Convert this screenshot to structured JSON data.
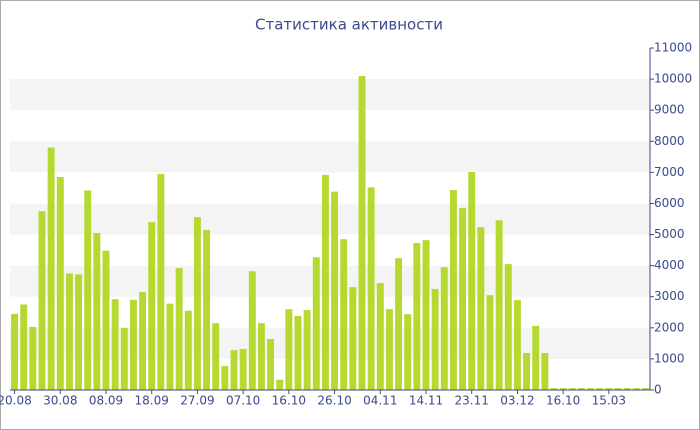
{
  "chart_data": {
    "type": "bar",
    "title": "Статистика активности",
    "categories": [
      "20.08",
      null,
      null,
      null,
      null,
      "30.08",
      null,
      null,
      null,
      null,
      "08.09",
      null,
      null,
      null,
      null,
      "18.09",
      null,
      null,
      null,
      null,
      "27.09",
      null,
      null,
      null,
      null,
      "07.10",
      null,
      null,
      null,
      null,
      "16.10",
      null,
      null,
      null,
      null,
      "26.10",
      null,
      null,
      null,
      null,
      "04.11",
      null,
      null,
      null,
      null,
      "14.11",
      null,
      null,
      null,
      null,
      "23.11",
      null,
      null,
      null,
      null,
      "03.12",
      null,
      null,
      null,
      null,
      "16.10",
      null,
      null,
      null,
      null,
      "15.03",
      null,
      null,
      null,
      null
    ],
    "values": [
      2450,
      2750,
      2030,
      5750,
      7800,
      6850,
      3750,
      3720,
      6420,
      5050,
      4480,
      2920,
      2000,
      2900,
      3150,
      5400,
      6950,
      2780,
      3920,
      2550,
      5560,
      5150,
      2150,
      770,
      1280,
      1320,
      3820,
      2150,
      1640,
      330,
      2600,
      2380,
      2570,
      4270,
      6920,
      6380,
      4850,
      3310,
      10100,
      6520,
      3440,
      2600,
      4240,
      2440,
      4730,
      4820,
      3250,
      3950,
      6430,
      5850,
      7010,
      5240,
      3050,
      5460,
      4050,
      2890,
      1190,
      2060,
      1190,
      60,
      60,
      60,
      60,
      60,
      60,
      60,
      60,
      60,
      60,
      60
    ],
    "color": "#b5d931",
    "ylim": [
      0,
      11000
    ],
    "yticks": [
      0,
      1000,
      2000,
      3000,
      4000,
      5000,
      6000,
      7000,
      8000,
      9000,
      10000,
      11000
    ],
    "grid": true
  }
}
